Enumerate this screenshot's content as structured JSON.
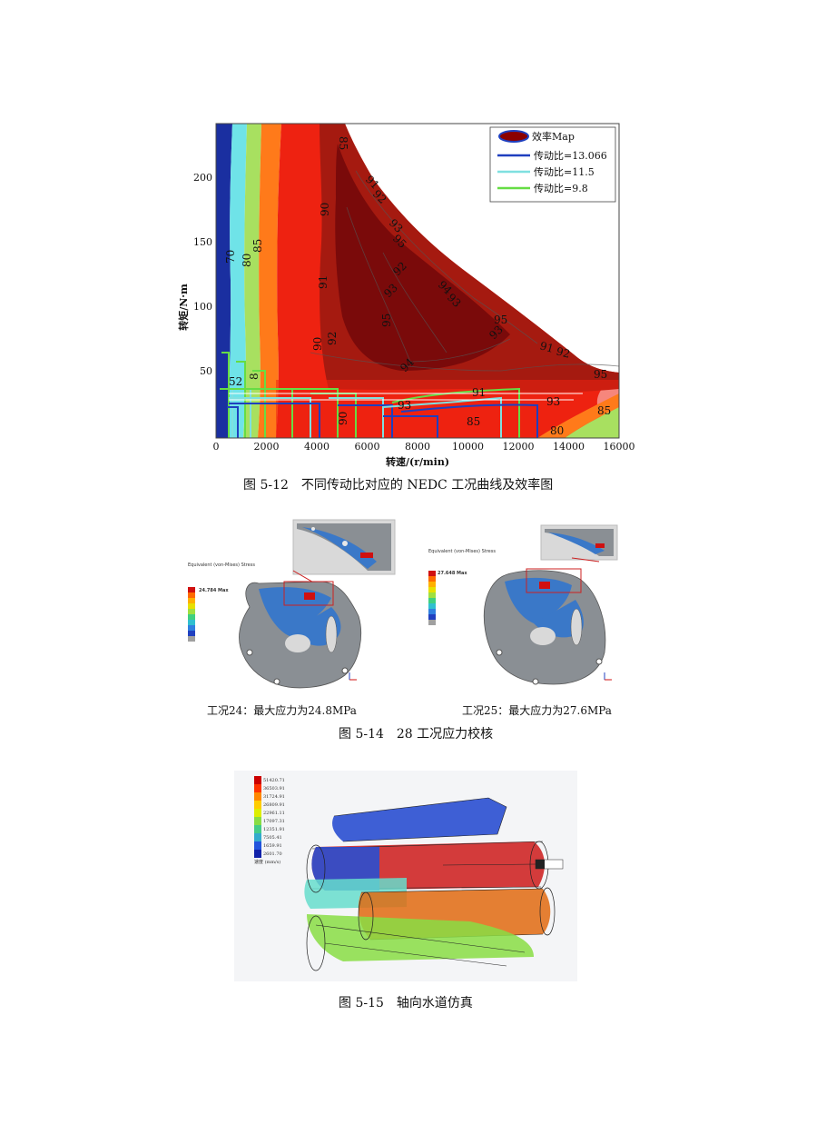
{
  "figure_5_12": {
    "caption": "图 5-12　不同传动比对应的 NEDC 工况曲线及效率图",
    "legend": [
      {
        "label": "效率Map",
        "color": "#8b0000",
        "symbol": "ellipse"
      },
      {
        "label": "传动比=13.066",
        "color": "#1f3fbf",
        "symbol": "line"
      },
      {
        "label": "传动比=11.5",
        "color": "#7fe0e0",
        "symbol": "line"
      },
      {
        "label": "传动比=9.8",
        "color": "#66dd44",
        "symbol": "line"
      }
    ],
    "contour_labels": [
      "85",
      "91",
      "92",
      "90",
      "93",
      "95",
      "70",
      "80",
      "85",
      "91",
      "93",
      "94",
      "92",
      "91",
      "94",
      "92",
      "93",
      "85",
      "90",
      "93",
      "91",
      "95",
      "90",
      "85",
      "91",
      "91",
      "92",
      "85",
      "90",
      "90",
      "95",
      "85",
      "80"
    ],
    "colors": {
      "blue_band": "#1a2fa0",
      "cyan_band": "#6fe3e8",
      "green_band": "#a8e060",
      "orange_band": "#ff7a1a",
      "red_region": "#ee2211",
      "darkred_region": "#a51a10",
      "maroon_region": "#7a0a0a"
    }
  },
  "chart_data": {
    "type": "heatmap",
    "title": "",
    "xlabel": "转速/(r/min)",
    "ylabel": "转矩/N·m",
    "xlim": [
      0,
      16000
    ],
    "ylim": [
      0,
      240
    ],
    "xticks": [
      "0",
      "2000",
      "4000",
      "6000",
      "8000",
      "10000",
      "12000",
      "14000",
      "16000"
    ],
    "yticks": [
      "50",
      "100",
      "150",
      "200"
    ],
    "grid": false,
    "legend_position": "top-right",
    "series": [
      {
        "name": "效率Map"
      },
      {
        "name": "传动比=13.066"
      },
      {
        "name": "传动比=11.5"
      },
      {
        "name": "传动比=9.8"
      }
    ]
  },
  "figure_5_14": {
    "caption": "图 5-14　28 工况应力校核",
    "left_label": "工况24：最大应力为24.8MPa",
    "right_label": "工况25：最大应力为27.6MPa",
    "left_max": "24.784 Max",
    "right_max": "27.648 Max",
    "left_legend_title": "Equivalent (von-Mises) Stress",
    "right_legend_title": "Equivalent (von-Mises) Stress",
    "legend_colors": [
      "#d01010",
      "#ff6a00",
      "#ffb000",
      "#e8e000",
      "#a0e040",
      "#40d080",
      "#30c0d0",
      "#3080e0",
      "#2040c0",
      "#a0a0a0"
    ]
  },
  "figure_5_15": {
    "caption": "图 5-15　轴向水道仿真",
    "legend_values": [
      "51420.71",
      "36503.91",
      "31724.91",
      "26809.91",
      "22961.11",
      "17097.31",
      "12351.91",
      "7505.41",
      "1659.91",
      "2601.70"
    ],
    "legend_colors": [
      "#cc0000",
      "#ff3300",
      "#ff8800",
      "#ffcc00",
      "#ddee00",
      "#88dd44",
      "#44cc88",
      "#33aacc",
      "#2255dd",
      "#1122aa"
    ],
    "unit_label": "速度 (mm/s)"
  }
}
